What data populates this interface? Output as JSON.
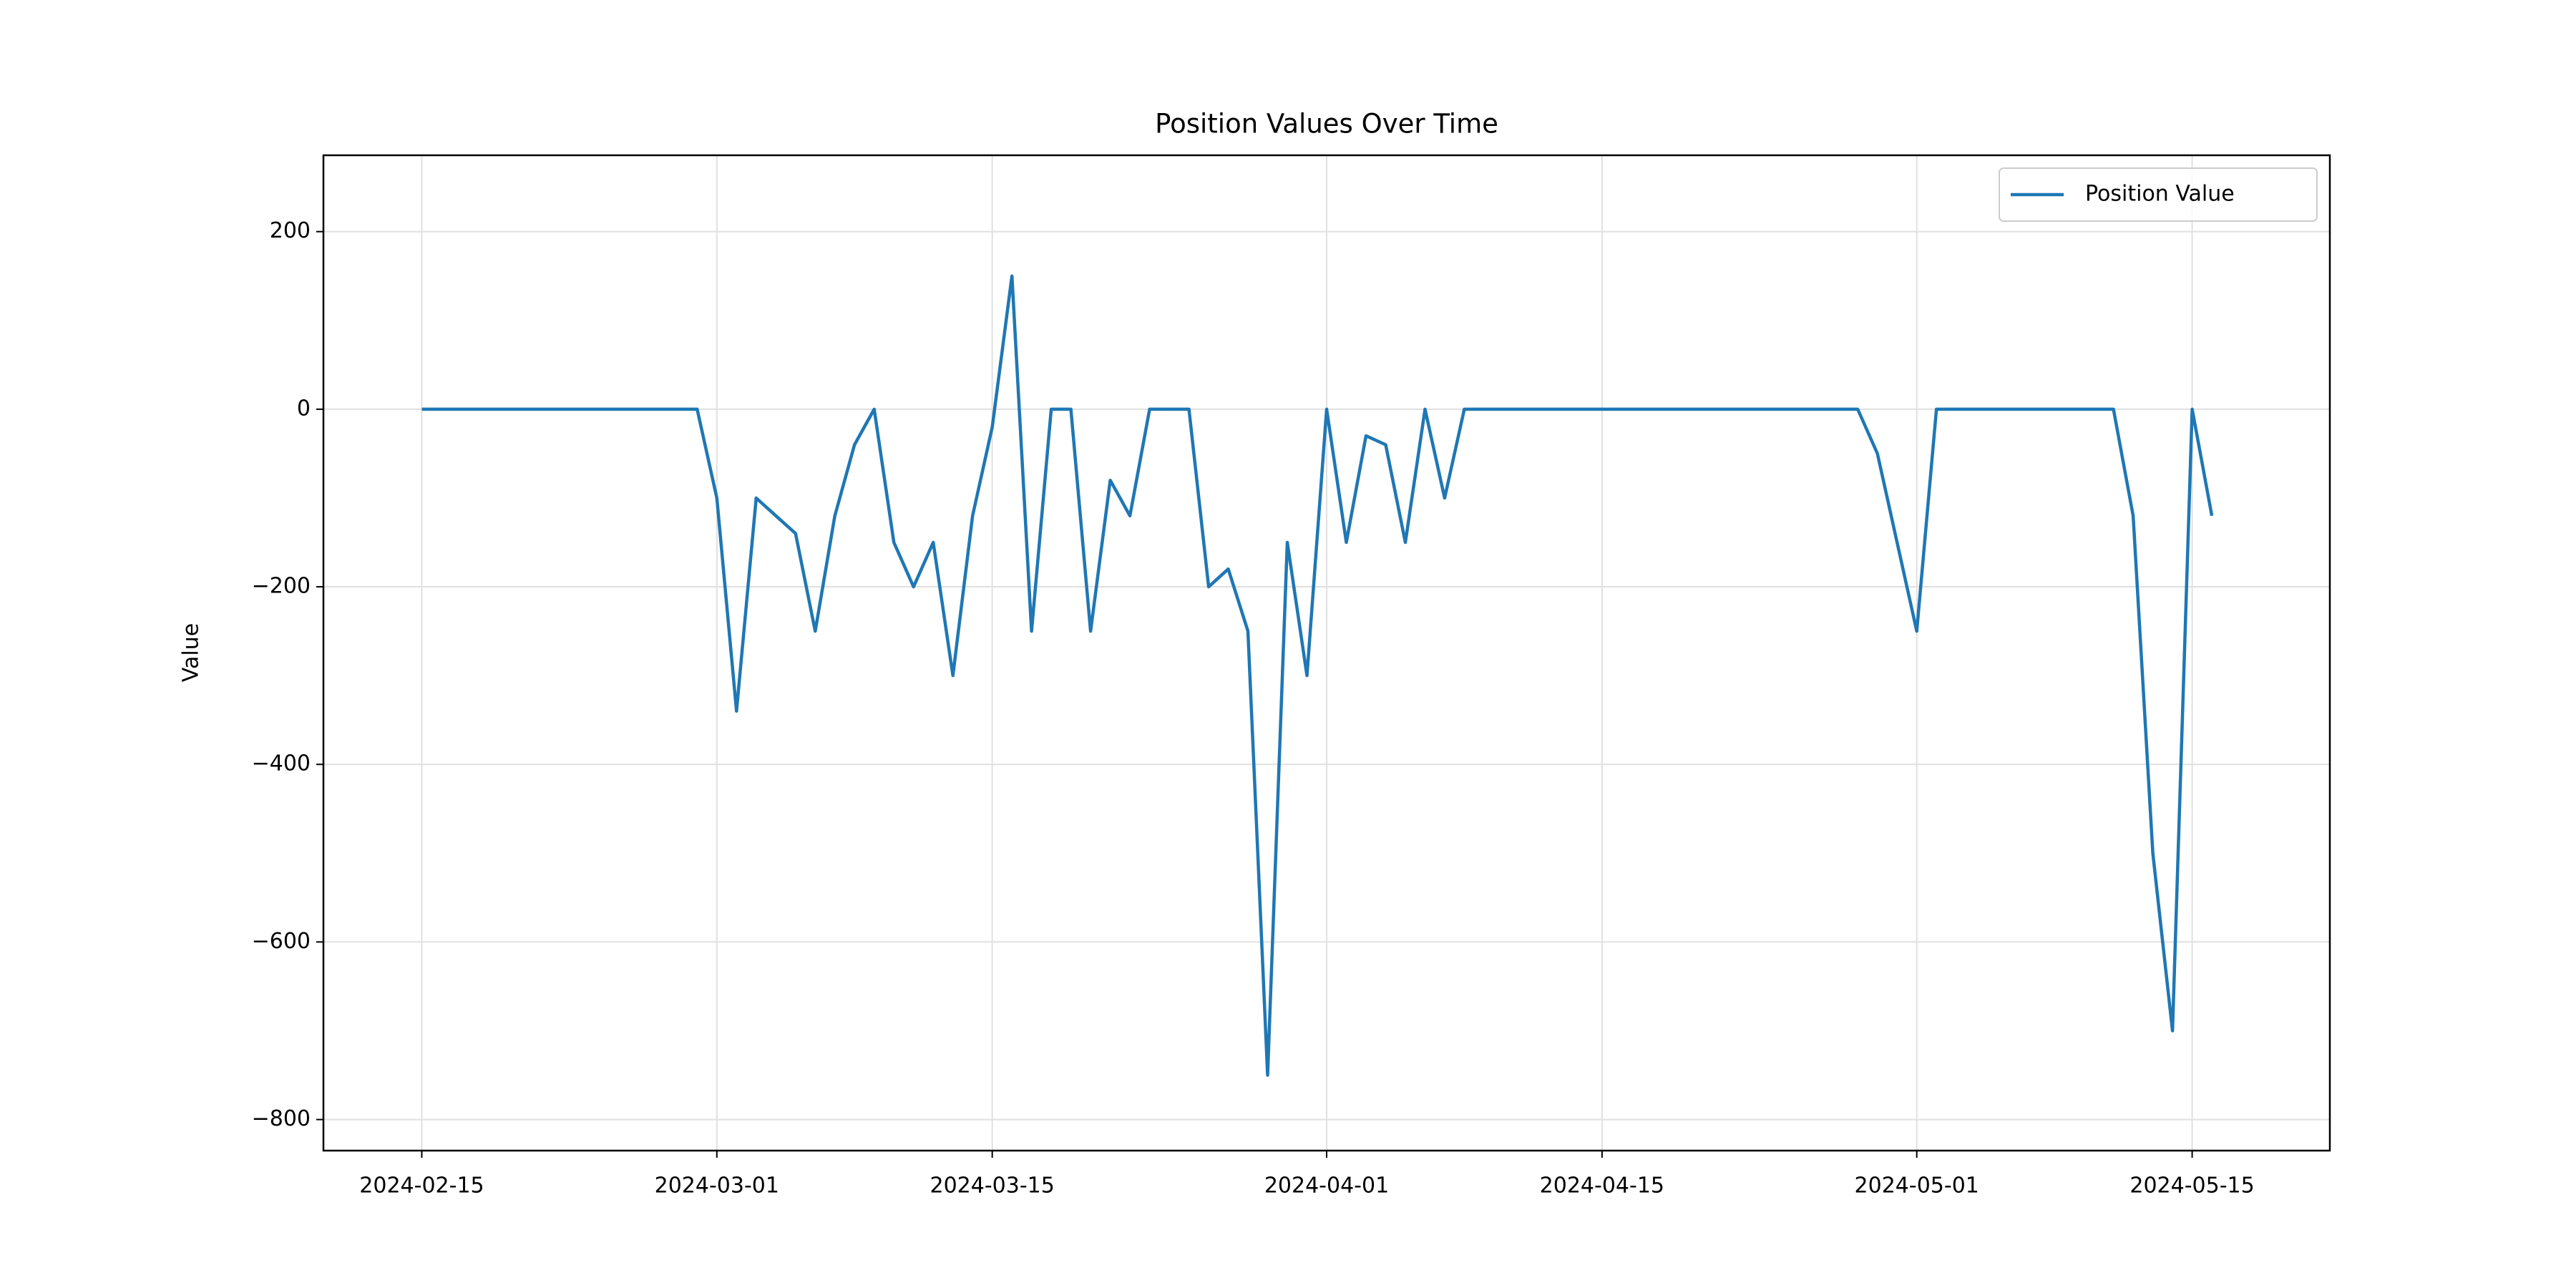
{
  "chart_data": {
    "type": "line",
    "title": "Position Values Over Time",
    "y_label": "Value",
    "x": [
      "2024-02-15",
      "2024-02-16",
      "2024-02-17",
      "2024-02-18",
      "2024-02-19",
      "2024-02-20",
      "2024-02-21",
      "2024-02-22",
      "2024-02-23",
      "2024-02-24",
      "2024-02-25",
      "2024-02-26",
      "2024-02-27",
      "2024-02-28",
      "2024-02-29",
      "2024-03-01",
      "2024-03-02",
      "2024-03-03",
      "2024-03-04",
      "2024-03-05",
      "2024-03-06",
      "2024-03-07",
      "2024-03-08",
      "2024-03-09",
      "2024-03-10",
      "2024-03-11",
      "2024-03-12",
      "2024-03-13",
      "2024-03-14",
      "2024-03-15",
      "2024-03-16",
      "2024-03-17",
      "2024-03-18",
      "2024-03-19",
      "2024-03-20",
      "2024-03-21",
      "2024-03-22",
      "2024-03-23",
      "2024-03-24",
      "2024-03-25",
      "2024-03-26",
      "2024-03-27",
      "2024-03-28",
      "2024-03-29",
      "2024-03-30",
      "2024-03-31",
      "2024-04-01",
      "2024-04-02",
      "2024-04-03",
      "2024-04-04",
      "2024-04-05",
      "2024-04-06",
      "2024-04-07",
      "2024-04-08",
      "2024-04-09",
      "2024-04-10",
      "2024-04-11",
      "2024-04-12",
      "2024-04-13",
      "2024-04-14",
      "2024-04-15",
      "2024-04-16",
      "2024-04-17",
      "2024-04-18",
      "2024-04-19",
      "2024-04-20",
      "2024-04-21",
      "2024-04-22",
      "2024-04-23",
      "2024-04-24",
      "2024-04-25",
      "2024-04-26",
      "2024-04-27",
      "2024-04-28",
      "2024-04-29",
      "2024-04-30",
      "2024-05-01",
      "2024-05-02",
      "2024-05-03",
      "2024-05-04",
      "2024-05-05",
      "2024-05-06",
      "2024-05-07",
      "2024-05-08",
      "2024-05-09",
      "2024-05-10",
      "2024-05-11",
      "2024-05-12",
      "2024-05-13",
      "2024-05-14",
      "2024-05-15",
      "2024-05-16"
    ],
    "series": [
      {
        "name": "Position Value",
        "color": "#1f77b4",
        "values": [
          0,
          0,
          0,
          0,
          0,
          0,
          0,
          0,
          0,
          0,
          0,
          0,
          0,
          0,
          0,
          -100,
          -340,
          -100,
          -120,
          -140,
          -250,
          -120,
          -40,
          0,
          -150,
          -200,
          -150,
          -300,
          -120,
          -20,
          150,
          -250,
          0,
          0,
          -250,
          -80,
          -120,
          0,
          0,
          0,
          -200,
          -180,
          -250,
          -750,
          -150,
          -300,
          0,
          -150,
          -30,
          -40,
          -150,
          0,
          -100,
          0,
          0,
          0,
          0,
          0,
          0,
          0,
          0,
          0,
          0,
          0,
          0,
          0,
          0,
          0,
          0,
          0,
          0,
          0,
          0,
          0,
          -50,
          -150,
          -250,
          0,
          0,
          0,
          0,
          0,
          0,
          0,
          0,
          0,
          0,
          -120,
          -500,
          -700,
          0,
          -120
        ]
      }
    ],
    "xlim": [
      "2024-02-10",
      "2024-05-22"
    ],
    "xticks": [
      "2024-02-15",
      "2024-03-01",
      "2024-03-15",
      "2024-04-01",
      "2024-04-15",
      "2024-05-01",
      "2024-05-15"
    ],
    "ylim": [
      -835,
      286
    ],
    "yticks": [
      {
        "value": -800,
        "label": "−800"
      },
      {
        "value": -600,
        "label": "−600"
      },
      {
        "value": -400,
        "label": "−400"
      },
      {
        "value": -200,
        "label": "−200"
      },
      0,
      200
    ],
    "grid": true,
    "legend": "upper right"
  }
}
